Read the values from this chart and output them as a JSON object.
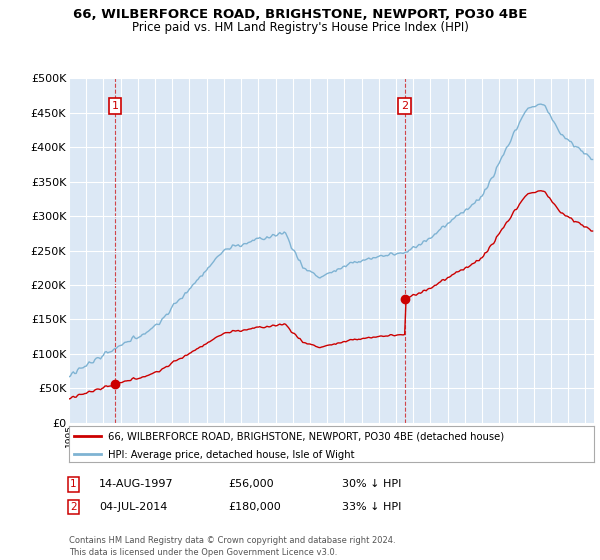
{
  "title": "66, WILBERFORCE ROAD, BRIGHSTONE, NEWPORT, PO30 4BE",
  "subtitle": "Price paid vs. HM Land Registry's House Price Index (HPI)",
  "sale_year1": 1997.625,
  "sale_price1": 56000,
  "sale_year2": 2014.5,
  "sale_price2": 180000,
  "legend_property": "66, WILBERFORCE ROAD, BRIGHSTONE, NEWPORT, PO30 4BE (detached house)",
  "legend_hpi": "HPI: Average price, detached house, Isle of Wight",
  "ann1_date": "14-AUG-1997",
  "ann1_price": "£56,000",
  "ann1_hpi": "30% ↓ HPI",
  "ann2_date": "04-JUL-2014",
  "ann2_price": "£180,000",
  "ann2_hpi": "33% ↓ HPI",
  "footnote": "Contains HM Land Registry data © Crown copyright and database right 2024.\nThis data is licensed under the Open Government Licence v3.0.",
  "background_color": "#ffffff",
  "plot_bg_color": "#dce8f5",
  "red_color": "#cc0000",
  "blue_color": "#7fb3d3",
  "ylim_max": 500000,
  "xlim_min": 1995,
  "xlim_max": 2025.5
}
